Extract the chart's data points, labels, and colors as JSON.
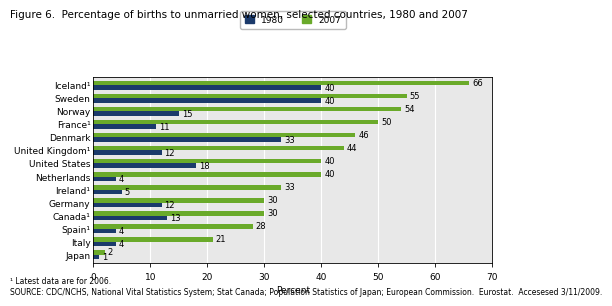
{
  "title": "Figure 6.  Percentage of births to unmarried women, selected countries, 1980 and 2007",
  "xlabel": "Percent",
  "footnote1": "¹ Latest data are for 2006.",
  "footnote2": "SOURCE: CDC/NCHS, National Vital Statistics System; Stat Canada; Population Statistics of Japan; European Commission.  Eurostat.  Accesesed 3/11/2009.",
  "countries": [
    "Iceland¹",
    "Sweden",
    "Norway",
    "France¹",
    "Denmark",
    "United Kingdom¹",
    "United States",
    "Netherlands",
    "Ireland¹",
    "Germany",
    "Canada¹",
    "Spain¹",
    "Italy",
    "Japan"
  ],
  "values_1980": [
    40,
    40,
    15,
    11,
    33,
    12,
    18,
    4,
    5,
    12,
    13,
    4,
    4,
    1
  ],
  "values_2007": [
    66,
    55,
    54,
    50,
    46,
    44,
    40,
    40,
    33,
    30,
    30,
    28,
    21,
    2
  ],
  "color_1980": "#1b3a6b",
  "color_2007": "#6aaa2a",
  "xlim": [
    0,
    70
  ],
  "xticks": [
    0,
    10,
    20,
    30,
    40,
    50,
    60,
    70
  ],
  "legend_labels": [
    "1980",
    "2007"
  ],
  "background_color": "#ffffff",
  "plot_bg_color": "#e8e8e8",
  "bar_height": 0.38,
  "title_fontsize": 7.5,
  "label_fontsize": 6.5,
  "tick_fontsize": 6.5,
  "value_fontsize": 6,
  "footnote_fontsize": 5.5
}
